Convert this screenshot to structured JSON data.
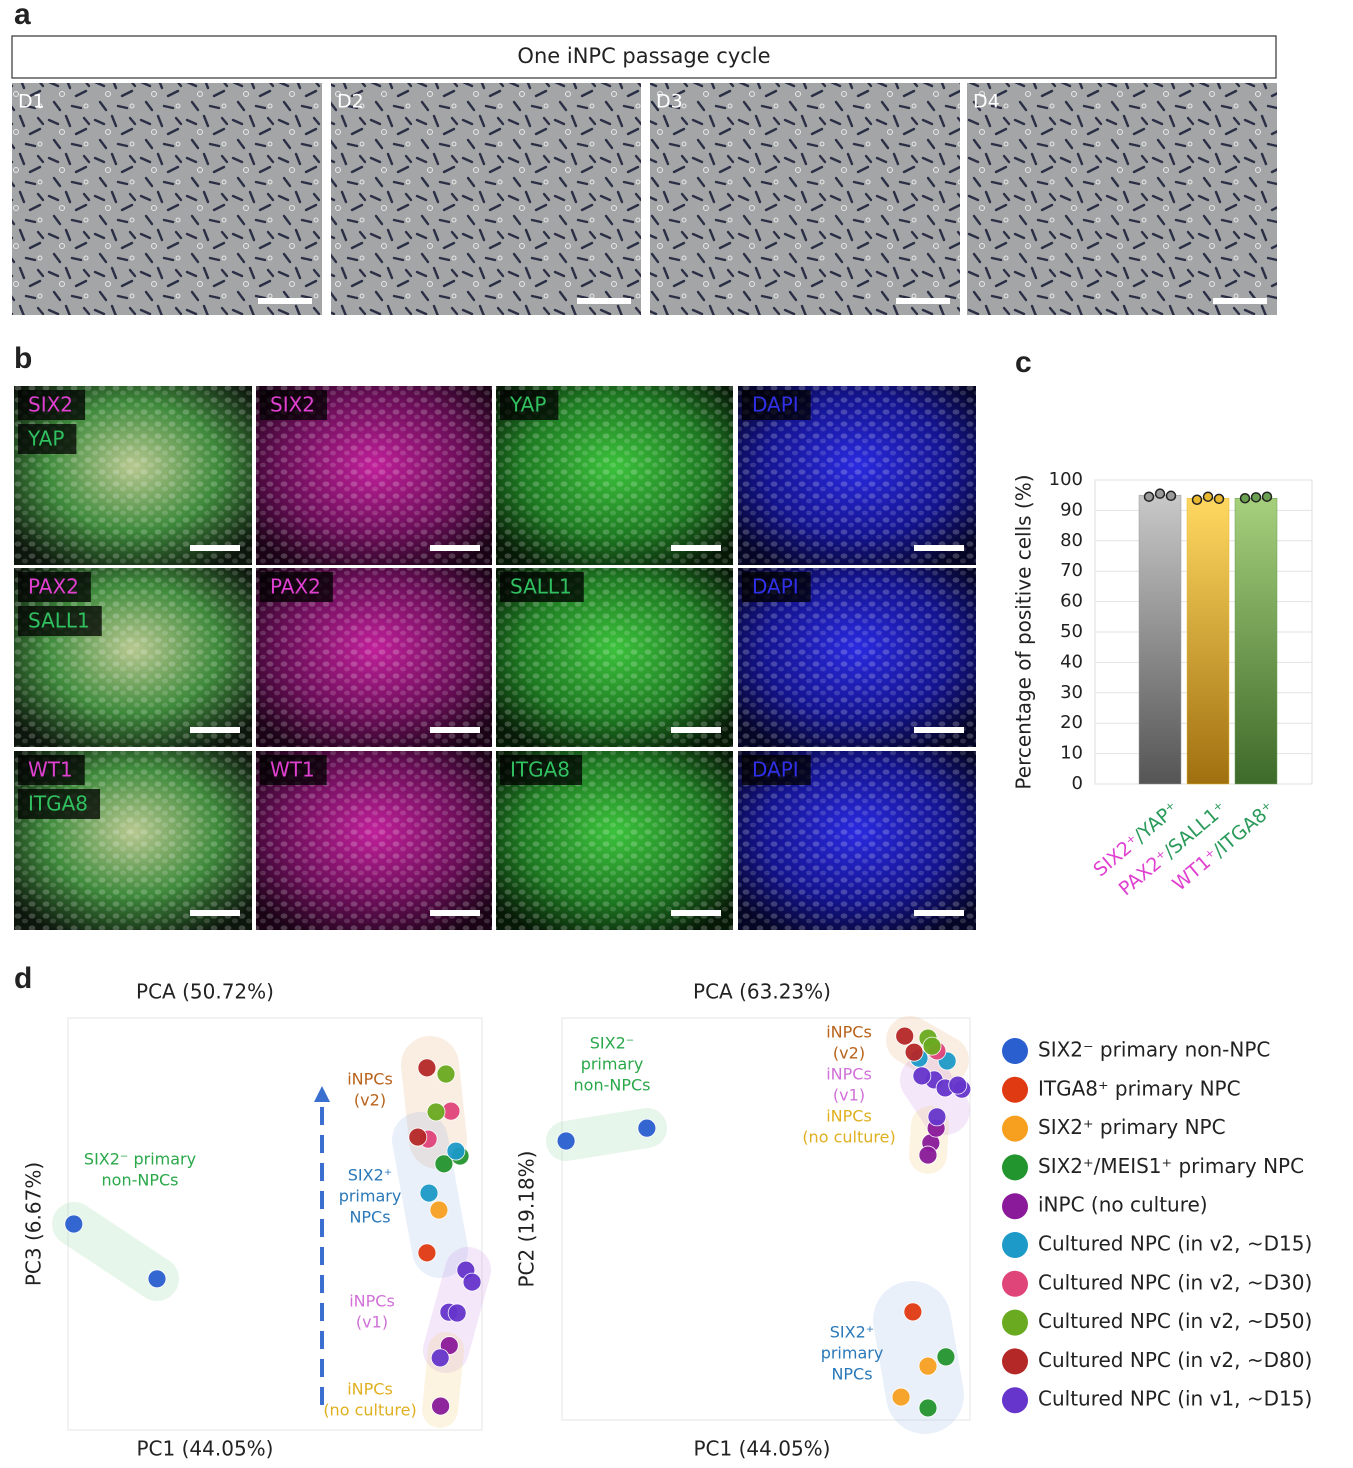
{
  "panel_labels": [
    "a",
    "b",
    "c",
    "d"
  ],
  "panel_a": {
    "title": "One iNPC passage cycle",
    "days": [
      "D1",
      "D2",
      "D3",
      "D4"
    ]
  },
  "panel_b": {
    "images": [
      [
        [
          "SIX2",
          "YAP"
        ],
        [
          "SIX2"
        ],
        [
          "YAP"
        ],
        [
          "DAPI"
        ]
      ],
      [
        [
          "PAX2",
          "SALL1"
        ],
        [
          "PAX2"
        ],
        [
          "SALL1"
        ],
        [
          "DAPI"
        ]
      ],
      [
        [
          "WT1",
          "ITGA8"
        ],
        [
          "WT1"
        ],
        [
          "ITGA8"
        ],
        [
          "DAPI"
        ]
      ]
    ]
  },
  "chart_data": [
    {
      "type": "bar",
      "ylabel": "Percentage of positive cells (%)",
      "categories": [
        [
          "SIX2⁺",
          "/YAP⁺"
        ],
        [
          "PAX2⁺",
          "/SALL1⁺"
        ],
        [
          "WT1⁺",
          "/ITGA8⁺"
        ]
      ],
      "category_colors": [
        "#e040d0",
        "#2a9a5a"
      ],
      "values": [
        95,
        94,
        94
      ],
      "colors": [
        "#9a9a9a",
        "#e8b830",
        "#6aa050"
      ],
      "points": [
        [
          94.5,
          95.5,
          94.8
        ],
        [
          93.5,
          94.5,
          93.8
        ],
        [
          94,
          94.3,
          94.5
        ]
      ],
      "ylim": [
        0,
        100
      ],
      "yticks": [
        0,
        10,
        20,
        30,
        40,
        50,
        60,
        70,
        80,
        90,
        100
      ],
      "grid": true
    },
    {
      "type": "scatter",
      "title": "PCA (50.72%)",
      "xlabel": "PC1 (44.05%)",
      "ylabel": "PC3 (6.67%)",
      "xlim": [
        0,
        100
      ],
      "ylim": [
        0,
        100
      ],
      "series": [
        {
          "name": "SIX2⁻ primary non-NPC",
          "color": "#2a5fd0",
          "x": [
            1.4,
            21.5
          ],
          "values": [
            50,
            36.7
          ]
        },
        {
          "name": "ITGA8⁺ primary NPC",
          "color": "#e03a12",
          "x": [
            86.7
          ],
          "values": [
            43
          ]
        },
        {
          "name": "SIX2⁺ primary NPC",
          "color": "#f7a020",
          "x": [
            89.6
          ],
          "values": [
            53.4
          ]
        },
        {
          "name": "SIX2⁺/MEIS1⁺ primary NPC",
          "color": "#23952f",
          "x": [
            90.8,
            94.7
          ],
          "values": [
            64.6,
            66.5
          ]
        },
        {
          "name": "iNPC (no culture)",
          "color": "#8a1a9a",
          "x": [
            90,
            92.1
          ],
          "values": [
            5.8,
            20.5
          ]
        },
        {
          "name": "Cultured NPC (in v2, ~D15)",
          "color": "#1d9ac8",
          "x": [
            87.2,
            93.7
          ],
          "values": [
            57.5,
            67.7
          ]
        },
        {
          "name": "Cultured NPC (in v2, ~D30)",
          "color": "#e0457a",
          "x": [
            92.5,
            87
          ],
          "values": [
            77.4,
            70.6
          ]
        },
        {
          "name": "Cultured NPC (in v2, ~D50)",
          "color": "#6aaa20",
          "x": [
            91.3,
            88.9
          ],
          "values": [
            86.4,
            77.2
          ]
        },
        {
          "name": "Cultured NPC (in v2, ~D80)",
          "color": "#b52828",
          "x": [
            86.7,
            84.5
          ],
          "values": [
            87.9,
            71.1
          ]
        },
        {
          "name": "Cultured NPC (in v1, ~D15)",
          "color": "#6635cc",
          "x": [
            96.1,
            97.6,
            92,
            94,
            89.9
          ],
          "values": [
            38.8,
            35.9,
            28.6,
            28.4,
            17.5
          ]
        }
      ],
      "annotations": [
        {
          "lines": [
            "SIX2⁻ primary",
            "non-NPCs"
          ],
          "color": "#2aa84a"
        },
        {
          "lines": [
            "iNPCs",
            "(v2)"
          ],
          "color": "#b8621a"
        },
        {
          "lines": [
            "SIX2⁺",
            "primary",
            "NPCs"
          ],
          "color": "#2a78b8"
        },
        {
          "lines": [
            "iNPCs",
            "(v1)"
          ],
          "color": "#d070d8"
        },
        {
          "lines": [
            "iNPCs",
            "(no culture)"
          ],
          "color": "#e0b020"
        }
      ]
    },
    {
      "type": "scatter",
      "title": "PCA (63.23%)",
      "xlabel": "PC1 (44.05%)",
      "ylabel": "PC2 (19.18%)",
      "xlim": [
        0,
        100
      ],
      "ylim": [
        0,
        100
      ],
      "series": [
        {
          "color": "#2a5fd0",
          "x": [
            1,
            20.8
          ],
          "values": [
            69.4,
            72.6
          ]
        },
        {
          "color": "#e03a12",
          "x": [
            86
          ],
          "values": [
            26.9
          ]
        },
        {
          "color": "#f7a020",
          "x": [
            89.7,
            83.1
          ],
          "values": [
            13.4,
            5.7
          ]
        },
        {
          "color": "#23952f",
          "x": [
            94.1,
            89.7
          ],
          "values": [
            15.7,
            3
          ]
        },
        {
          "color": "#8a1a9a",
          "x": [
            90.4,
            89.7,
            91.7
          ],
          "values": [
            68.9,
            65.9,
            72.6
          ]
        },
        {
          "color": "#1d9ac8",
          "x": [
            94.4,
            87.5
          ],
          "values": [
            89.3,
            90
          ]
        },
        {
          "color": "#e0457a",
          "x": [
            91.9
          ],
          "values": [
            91.8
          ]
        },
        {
          "color": "#6aaa20",
          "x": [
            89.7,
            90.7
          ],
          "values": [
            95,
            93
          ]
        },
        {
          "color": "#b52828",
          "x": [
            84,
            86.3
          ],
          "values": [
            95.5,
            91.5
          ]
        },
        {
          "color": "#6635cc",
          "x": [
            91.2,
            93.9,
            98,
            97,
            88.2,
            91.9
          ],
          "values": [
            84.6,
            82.6,
            82.3,
            83.3,
            85.6,
            75.4
          ]
        }
      ],
      "annotations": [
        {
          "lines": [
            "SIX2⁻",
            "primary",
            "non-NPCs"
          ],
          "color": "#2aa84a"
        },
        {
          "lines": [
            "iNPCs",
            "(v2)"
          ],
          "color": "#b8621a"
        },
        {
          "lines": [
            "iNPCs",
            "(v1)"
          ],
          "color": "#d070d8"
        },
        {
          "lines": [
            "iNPCs",
            "(no culture)"
          ],
          "color": "#e0b020"
        },
        {
          "lines": [
            "SIX2⁺",
            "primary",
            "NPCs"
          ],
          "color": "#2a78b8"
        }
      ]
    }
  ]
}
